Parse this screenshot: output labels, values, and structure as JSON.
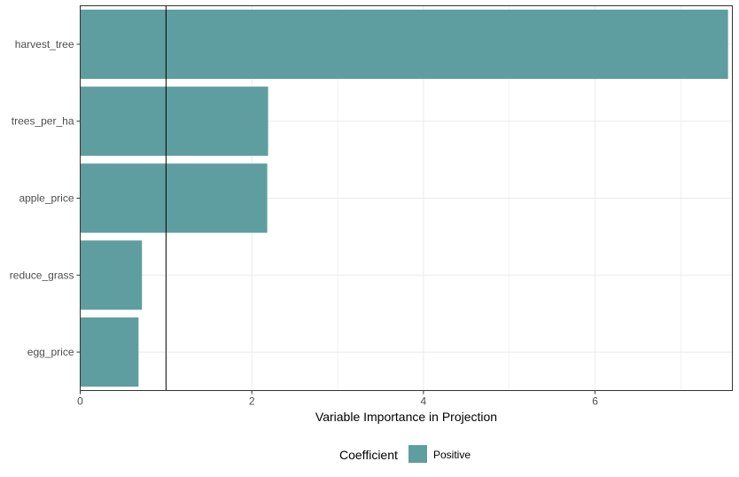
{
  "chart_data": {
    "type": "bar",
    "orientation": "horizontal",
    "categories": [
      "harvest_tree",
      "trees_per_ha",
      "apple_price",
      "reduce_grass",
      "egg_price"
    ],
    "values": [
      7.55,
      2.19,
      2.18,
      0.72,
      0.68
    ],
    "xlabel": "Variable Importance in Projection",
    "ylabel": "",
    "xlim": [
      0,
      7.6
    ],
    "xticks": [
      0,
      2,
      4,
      6
    ],
    "reference_line": 1,
    "grid": true,
    "legend": {
      "title": "Coefficient",
      "entries": [
        {
          "label": "Positive",
          "color": "#5f9ea0"
        }
      ],
      "position": "bottom"
    },
    "colors": {
      "bar": "#5f9ea0",
      "grid": "#ebebeb",
      "panel_border": "#333333",
      "reference_line": "#000000"
    }
  }
}
